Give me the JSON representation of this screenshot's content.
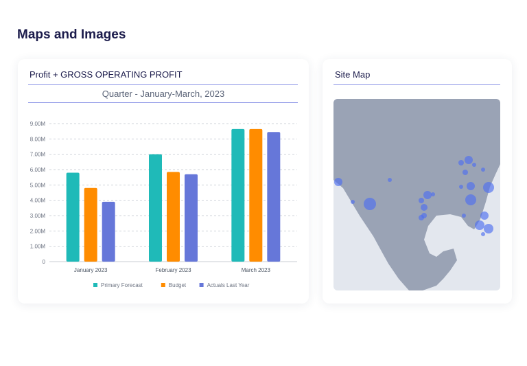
{
  "page_title": "Maps and Images",
  "chart_card": {
    "title": "Profit + GROSS OPERATING PROFIT",
    "subtitle": "Quarter - January-March, 2023"
  },
  "map_card": {
    "title": "Site Map"
  },
  "chart_data": {
    "type": "bar",
    "categories": [
      "January 2023",
      "February 2023",
      "March 2023"
    ],
    "series": [
      {
        "name": "Primary Forecast",
        "color": "#1fbab8",
        "values": [
          5.8,
          7.0,
          8.65
        ]
      },
      {
        "name": "Budget",
        "color": "#ff8c00",
        "values": [
          4.8,
          5.85,
          8.65
        ]
      },
      {
        "name": "Actuals Last Year",
        "color": "#6677d9",
        "values": [
          3.9,
          5.7,
          8.45
        ]
      }
    ],
    "unit": "M",
    "yticks": [
      "0",
      "1.00M",
      "2.00M",
      "3.00M",
      "4.00M",
      "5.00M",
      "6.00M",
      "7.00M",
      "8.00M",
      "9.00M"
    ],
    "ylim": [
      0,
      9
    ],
    "grid": true,
    "legend": "bottom"
  },
  "map": {
    "land_color": "#9aa3b5",
    "water_color": "#e3e7ee",
    "marker_color": "#4f6ef0"
  }
}
